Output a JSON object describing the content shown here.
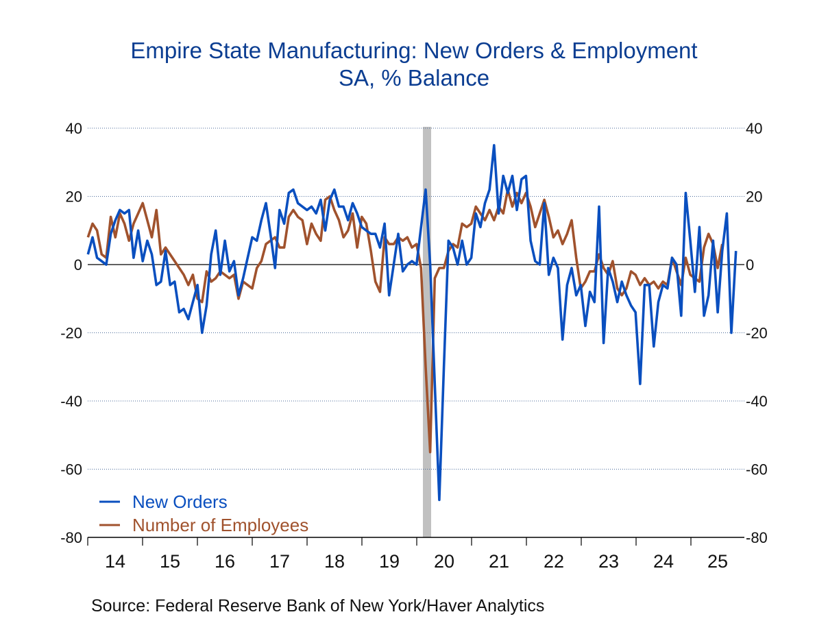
{
  "chart_data": {
    "type": "line",
    "title": "Empire State Manufacturing: New Orders & Employment",
    "subtitle": "SA, % Balance",
    "source": "Source:  Federal Reserve Bank of New York/Haver Analytics",
    "xlabel": "",
    "ylabel": "",
    "x_start": "2014-01",
    "frequency": "monthly",
    "ylim": [
      -80,
      40
    ],
    "yticks": [
      40,
      20,
      0,
      -20,
      -40,
      -60,
      -80
    ],
    "ytick_labels": [
      "40",
      "20",
      "0",
      "-20",
      "-40",
      "-60",
      "-80"
    ],
    "year_labels": [
      "14",
      "15",
      "16",
      "17",
      "18",
      "19",
      "20",
      "21",
      "22",
      "23",
      "24",
      "25"
    ],
    "grid": true,
    "dual_axis_labels": true,
    "legend_position": "bottom-left",
    "recession_shading": {
      "start": "2020-02",
      "end": "2020-04",
      "color": "#c0c0c0"
    },
    "series": [
      {
        "name": "New Orders",
        "color": "#0a4fbf",
        "values": [
          3,
          8,
          2,
          1,
          0,
          9,
          13,
          16,
          15,
          16,
          2,
          10,
          1,
          7,
          3,
          -6,
          -5,
          4,
          -6,
          -5,
          -14,
          -13,
          -16,
          -11,
          -6,
          -20,
          -12,
          3,
          10,
          -3,
          7,
          -2,
          1,
          -9,
          -4,
          2,
          8,
          7,
          13,
          18,
          9,
          -1,
          16,
          12,
          21,
          22,
          18,
          17,
          16,
          17,
          15,
          19,
          10,
          19,
          22,
          17,
          17,
          13,
          18,
          15,
          11,
          10,
          9,
          9,
          5,
          12,
          -9,
          0,
          9,
          -2,
          0,
          1,
          0,
          11,
          22,
          0,
          -35,
          -69,
          -30,
          7,
          5,
          0,
          7,
          0,
          2,
          15,
          11,
          18,
          22,
          35,
          15,
          26,
          21,
          26,
          16,
          25,
          26,
          7,
          1,
          0,
          18,
          -3,
          2,
          -1,
          -22,
          -6,
          -1,
          -9,
          -6,
          -18,
          -8,
          -11,
          17,
          -23,
          -1,
          -5,
          -11,
          -5,
          -9,
          -12,
          -14,
          -35,
          -6,
          -6,
          -24,
          -11,
          -6,
          -7,
          2,
          0,
          -15,
          21,
          7,
          -8,
          11,
          -15,
          -9,
          7,
          -14,
          4,
          15,
          -20,
          4
        ]
      },
      {
        "name": "Number of Employees",
        "color": "#a0522d",
        "values": [
          8,
          12,
          10,
          3,
          2,
          14,
          8,
          15,
          12,
          7,
          12,
          15,
          18,
          13,
          8,
          16,
          3,
          5,
          3,
          1,
          -1,
          -3,
          -6,
          -3,
          -10,
          -11,
          -2,
          -5,
          -4,
          -2,
          -3,
          -4,
          -3,
          -10,
          -5,
          -6,
          -7,
          -1,
          1,
          6,
          7,
          8,
          5,
          5,
          14,
          16,
          14,
          13,
          6,
          12,
          9,
          7,
          19,
          20,
          16,
          13,
          8,
          10,
          15,
          5,
          14,
          12,
          4,
          -5,
          -8,
          8,
          6,
          6,
          8,
          7,
          8,
          5,
          6,
          -1,
          -30,
          -55,
          -4,
          -1,
          -1,
          4,
          6,
          5,
          12,
          11,
          12,
          17,
          15,
          13,
          16,
          13,
          17,
          15,
          22,
          17,
          21,
          18,
          21,
          17,
          11,
          15,
          19,
          14,
          8,
          10,
          6,
          9,
          13,
          2,
          -7,
          -5,
          -2,
          -2,
          3,
          -1,
          -3,
          1,
          -7,
          -9,
          -7,
          -2,
          -3,
          -6,
          -4,
          -6,
          -5,
          -7,
          -5,
          -6,
          2,
          -2,
          -6,
          2,
          -3,
          -4,
          -5,
          5,
          9,
          6,
          -1,
          6
        ]
      }
    ]
  }
}
